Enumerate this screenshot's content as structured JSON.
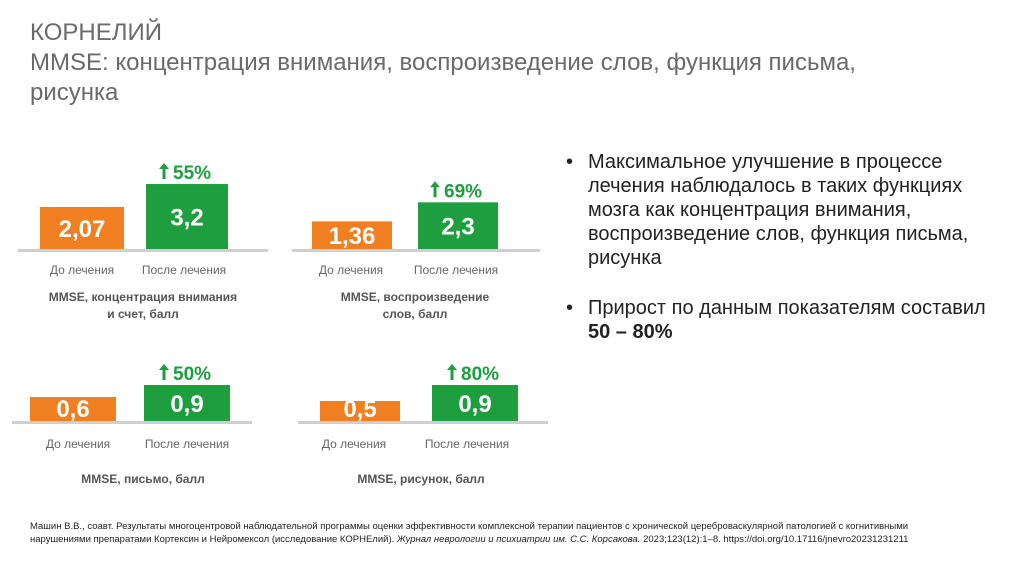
{
  "slide": {
    "title_line1": "КОРНЕЛИЙ",
    "title_line2": "MMSE: концентрация внимания, воспроизведение слов, функция письма,",
    "title_line3": "рисунка"
  },
  "colors": {
    "before": "#f07f22",
    "after": "#1e9e3e",
    "baseline": "#cfcfcf",
    "text_on_bar": "#ffffff"
  },
  "chart_data": [
    {
      "type": "bar",
      "categories": [
        "До лечения",
        "После лечения"
      ],
      "values": [
        2.07,
        3.2
      ],
      "value_labels": [
        "2,07",
        "3,2"
      ],
      "change_label": "55%",
      "change_icon": "arrow-up-icon",
      "caption_line1": "MMSE, концентрация внимания",
      "caption_line2": "и счет, балл"
    },
    {
      "type": "bar",
      "categories": [
        "До лечения",
        "После лечения"
      ],
      "values": [
        1.36,
        2.3
      ],
      "value_labels": [
        "1,36",
        "2,3"
      ],
      "change_label": "69%",
      "change_icon": "arrow-up-icon",
      "caption_line1": "MMSE, воспроизведение",
      "caption_line2": "слов, балл"
    },
    {
      "type": "bar",
      "categories": [
        "До лечения",
        "После лечения"
      ],
      "values": [
        0.6,
        0.9
      ],
      "value_labels": [
        "0,6",
        "0,9"
      ],
      "change_label": "50%",
      "change_icon": "arrow-up-icon",
      "caption_line1": "MMSE, письмо, балл",
      "caption_line2": ""
    },
    {
      "type": "bar",
      "categories": [
        "До лечения",
        "После лечения"
      ],
      "values": [
        0.5,
        0.9
      ],
      "value_labels": [
        "0,5",
        "0,9"
      ],
      "change_label": "80%",
      "change_icon": "arrow-up-icon",
      "caption_line1": "MMSE, рисунок, балл",
      "caption_line2": ""
    }
  ],
  "bullets": {
    "marker": "•",
    "b1": "Максимальное улучшение в процессе лечения наблюдалось в таких функциях мозга как концентрация внимания, воспроизведение слов, функция письма, рисунка",
    "b2_prefix": "Прирост по данным показателям составил ",
    "b2_bold": "50 – 80%"
  },
  "reference": {
    "part1": "Машин В.В., соавт. Результаты многоцентровой наблюдательной программы оценки эффективности комплексной терапии пациентов с хронической цереброваскулярной патологией с когнитивными нарушениями препаратами Кортексин и Нейромексол (исследование КОРНЕлий). ",
    "journal": "Журнал неврологии и психиатрии им. С.С. Корсакова.",
    "part2": " 2023;123(12):1–8. https://doi.org/10.17116/jnevro20231231211"
  }
}
